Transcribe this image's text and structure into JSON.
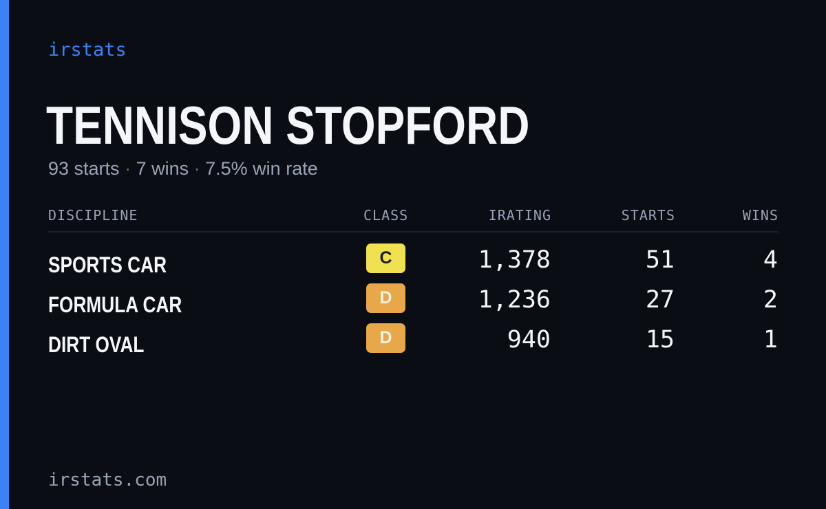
{
  "brand": "irstats",
  "driver": {
    "name": "TENNISON STOPFORD",
    "starts_text": "93 starts",
    "wins_text": "7 wins",
    "win_rate_text": "7.5% win rate",
    "separator": "·"
  },
  "table": {
    "headers": {
      "discipline": "DISCIPLINE",
      "class": "CLASS",
      "irating": "IRATING",
      "starts": "STARTS",
      "wins": "WINS"
    },
    "rows": [
      {
        "discipline": "SPORTS CAR",
        "class": "C",
        "irating": "1,378",
        "starts": "51",
        "wins": "4",
        "class_color": "#efe14f"
      },
      {
        "discipline": "FORMULA CAR",
        "class": "D",
        "irating": "1,236",
        "starts": "27",
        "wins": "2",
        "class_color": "#e8a84a"
      },
      {
        "discipline": "DIRT OVAL",
        "class": "D",
        "irating": "940",
        "starts": "15",
        "wins": "1",
        "class_color": "#e8a84a"
      }
    ]
  },
  "footer": "irstats.com",
  "colors": {
    "background": "#0a0d14",
    "accent": "#3b82f6",
    "text": "#f4f6fa",
    "muted": "#9aa3b5"
  }
}
